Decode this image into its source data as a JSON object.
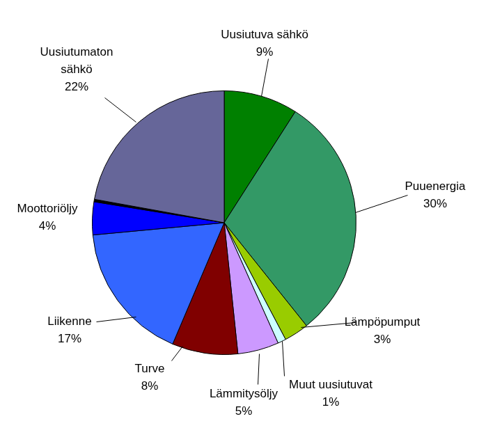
{
  "chart_data": {
    "type": "pie",
    "categories": [
      "Uusiutuva sähkö",
      "Puuenergia",
      "Lämpöpumput",
      "Muut uusiutuvat",
      "Lämmitysöljy",
      "Turve",
      "Liikenne",
      "Moottoriöljy",
      null,
      "Uusiutumaton sähkö"
    ],
    "values": [
      9,
      30,
      3,
      1,
      5,
      8,
      17,
      4,
      0.3,
      22
    ],
    "value_labels": [
      "9%",
      "30%",
      "3%",
      "1%",
      "5%",
      "8%",
      "17%",
      "4%",
      null,
      "22%"
    ],
    "colors": [
      "#008000",
      "#339966",
      "#99cc00",
      "#ccffff",
      "#cc99ff",
      "#800000",
      "#3366ff",
      "#0000ff",
      "#000000",
      "#666699"
    ],
    "data_labels": true
  }
}
